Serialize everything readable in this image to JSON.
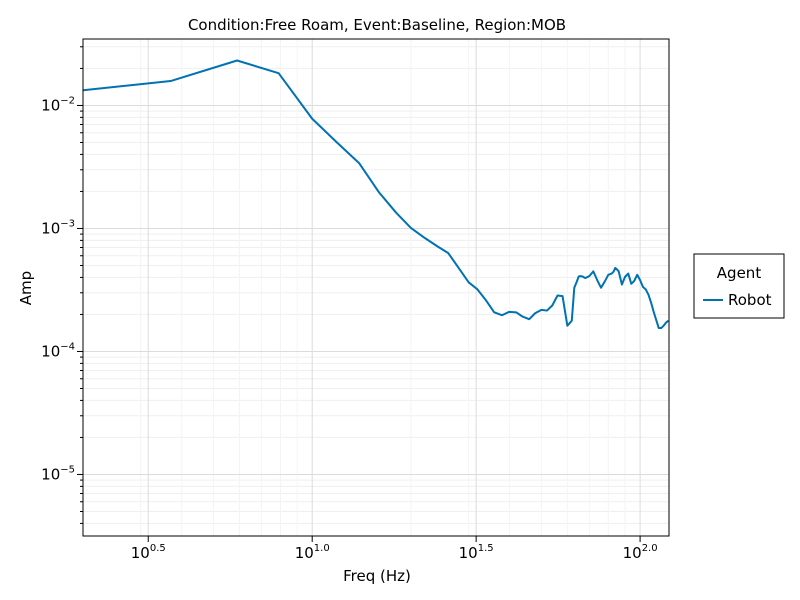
{
  "chart_data": {
    "type": "line",
    "title": "Condition:Free Roam, Event:Baseline, Region:MOB",
    "xlabel": "Freq (Hz)",
    "ylabel": "Amp",
    "xscale": "log10",
    "yscale": "log10",
    "xlim": [
      2.0,
      122.5
    ],
    "ylim": [
      3.16e-06,
      0.0347
    ],
    "grid": true,
    "x_ticks": [
      {
        "base": "10",
        "exp": "0.5",
        "value": 3.1623
      },
      {
        "base": "10",
        "exp": "1.0",
        "value": 10
      },
      {
        "base": "10",
        "exp": "1.5",
        "value": 31.623
      },
      {
        "base": "10",
        "exp": "2.0",
        "value": 100
      }
    ],
    "y_ticks": [
      {
        "base": "10",
        "exp": "−2",
        "value": 0.01
      },
      {
        "base": "10",
        "exp": "−3",
        "value": 0.001
      },
      {
        "base": "10",
        "exp": "−4",
        "value": 0.0001
      },
      {
        "base": "10",
        "exp": "−5",
        "value": 1e-05
      }
    ],
    "legend": {
      "title": "Agent",
      "placement": "outside-right",
      "entries": [
        {
          "label": "Robot",
          "color": "#0072b2"
        }
      ]
    },
    "series": [
      {
        "name": "Robot",
        "color": "#0072b2",
        "x": [
          2.0,
          3.7,
          5.9,
          7.9,
          10.0,
          11.9,
          13.9,
          16.0,
          18.0,
          20.0,
          22.0,
          24.0,
          26.0,
          28.0,
          30.0,
          31.9,
          33.9,
          35.9,
          37.9,
          39.9,
          41.9,
          43.8,
          45.9,
          47.9,
          50.0,
          52.0,
          54.0,
          56.0,
          58.0,
          60.0,
          61.9,
          63.0,
          64.0,
          65.0,
          66.0,
          67.0,
          68.0,
          70.0,
          72.0,
          74.0,
          76.0,
          78.0,
          80.0,
          81.9,
          83.0,
          84.0,
          86.0,
          88.0,
          90.0,
          92.0,
          94.0,
          96.0,
          98.0,
          100.0,
          102.0,
          104.0,
          106.0,
          108.0,
          110.0,
          112.0,
          114.0,
          116.0,
          118.0,
          120.0,
          122.0
        ],
        "values": [
          0.0133,
          0.0158,
          0.0232,
          0.0183,
          0.0078,
          0.005,
          0.0034,
          0.00196,
          0.00135,
          0.00101,
          0.00084,
          0.00072,
          0.00063,
          0.000475,
          0.000365,
          0.00032,
          0.00026,
          0.000208,
          0.000197,
          0.00021,
          0.000208,
          0.000192,
          0.000183,
          0.000205,
          0.000218,
          0.000215,
          0.000237,
          0.000285,
          0.000282,
          0.000162,
          0.000178,
          0.00033,
          0.000365,
          0.000408,
          0.00041,
          0.000405,
          0.000395,
          0.00041,
          0.000448,
          0.00038,
          0.00033,
          0.00037,
          0.00042,
          0.00043,
          0.000445,
          0.000478,
          0.00045,
          0.00035,
          0.000405,
          0.00043,
          0.000355,
          0.000375,
          0.00042,
          0.00038,
          0.000335,
          0.00032,
          0.00029,
          0.00025,
          0.00021,
          0.00018,
          0.000155,
          0.000155,
          0.000162,
          0.000172,
          0.000178
        ]
      }
    ]
  }
}
